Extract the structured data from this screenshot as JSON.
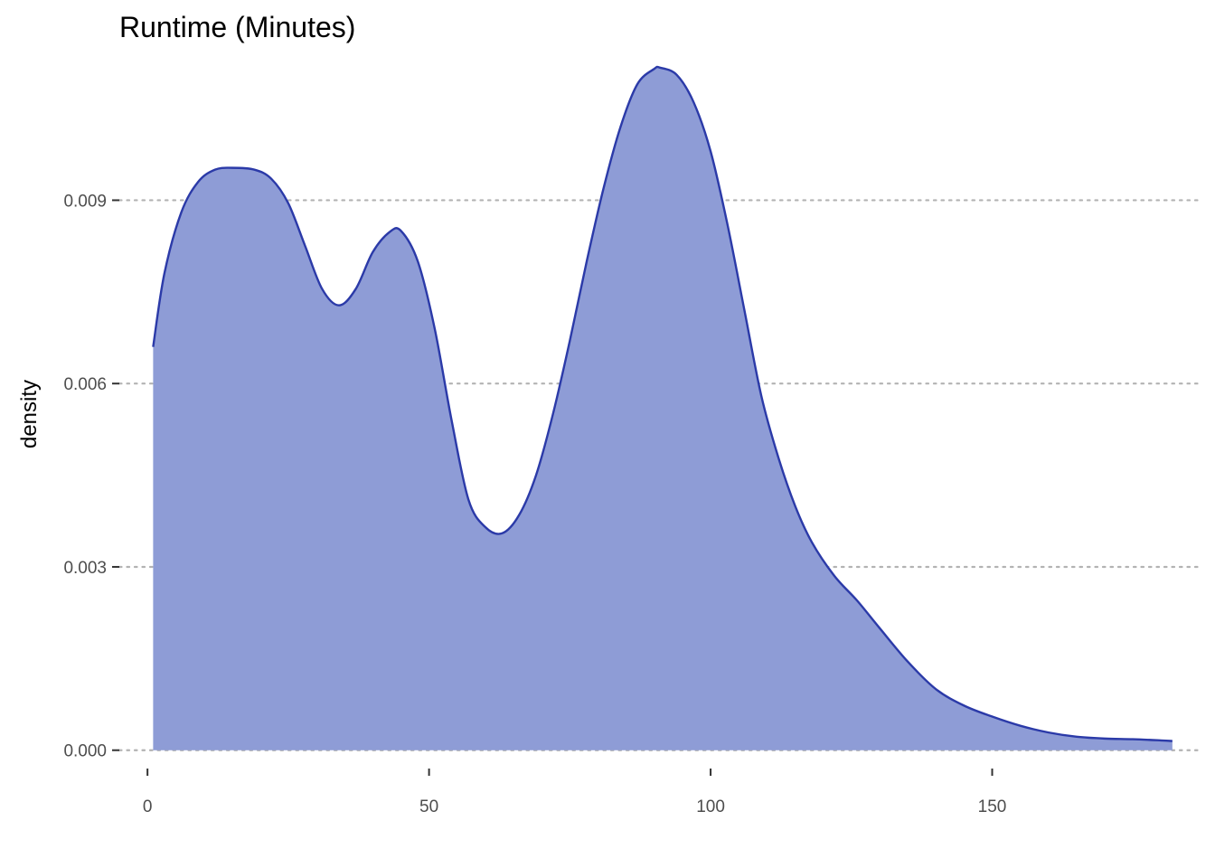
{
  "chart_data": {
    "type": "area",
    "title": "Runtime (Minutes)",
    "xlabel": "",
    "ylabel": "density",
    "xlim": [
      -5,
      187
    ],
    "ylim": [
      -0.0003,
      0.0113
    ],
    "x_ticks": [
      0,
      50,
      100,
      150
    ],
    "x_tick_labels": [
      "0",
      "50",
      "100",
      "150"
    ],
    "y_ticks": [
      0,
      0.003,
      0.006,
      0.009
    ],
    "y_tick_labels": [
      "0.000",
      "0.003",
      "0.006",
      "0.009"
    ],
    "grid": "horizontal dotted",
    "legend": "none",
    "fill_color": "#8e9cd6",
    "line_color": "#2b3aa8",
    "series": [
      {
        "x": [
          1,
          3,
          6,
          9,
          12,
          15,
          19,
          22,
          25,
          28,
          31,
          34,
          37,
          40,
          43,
          45,
          48,
          51,
          54,
          57,
          60,
          63,
          66,
          69,
          72,
          75,
          78,
          81,
          84,
          87,
          90,
          91,
          94,
          97,
          100,
          103,
          106,
          109,
          112,
          115,
          118,
          122,
          126,
          130,
          135,
          140,
          145,
          150,
          155,
          160,
          165,
          170,
          175,
          180,
          182
        ],
        "y": [
          0.0066,
          0.0078,
          0.0088,
          0.0093,
          0.0095,
          0.00953,
          0.0095,
          0.00935,
          0.00895,
          0.00825,
          0.00755,
          0.00728,
          0.00755,
          0.00815,
          0.00848,
          0.0085,
          0.008,
          0.0069,
          0.0054,
          0.0041,
          0.00365,
          0.00355,
          0.00385,
          0.0045,
          0.0055,
          0.0067,
          0.008,
          0.0092,
          0.0102,
          0.0109,
          0.01115,
          0.01117,
          0.01105,
          0.0106,
          0.0098,
          0.0086,
          0.0072,
          0.0058,
          0.0048,
          0.004,
          0.0034,
          0.00285,
          0.00245,
          0.002,
          0.00145,
          0.001,
          0.00073,
          0.00055,
          0.0004,
          0.00029,
          0.00022,
          0.00019,
          0.00018,
          0.00016,
          0.00015
        ]
      }
    ]
  }
}
